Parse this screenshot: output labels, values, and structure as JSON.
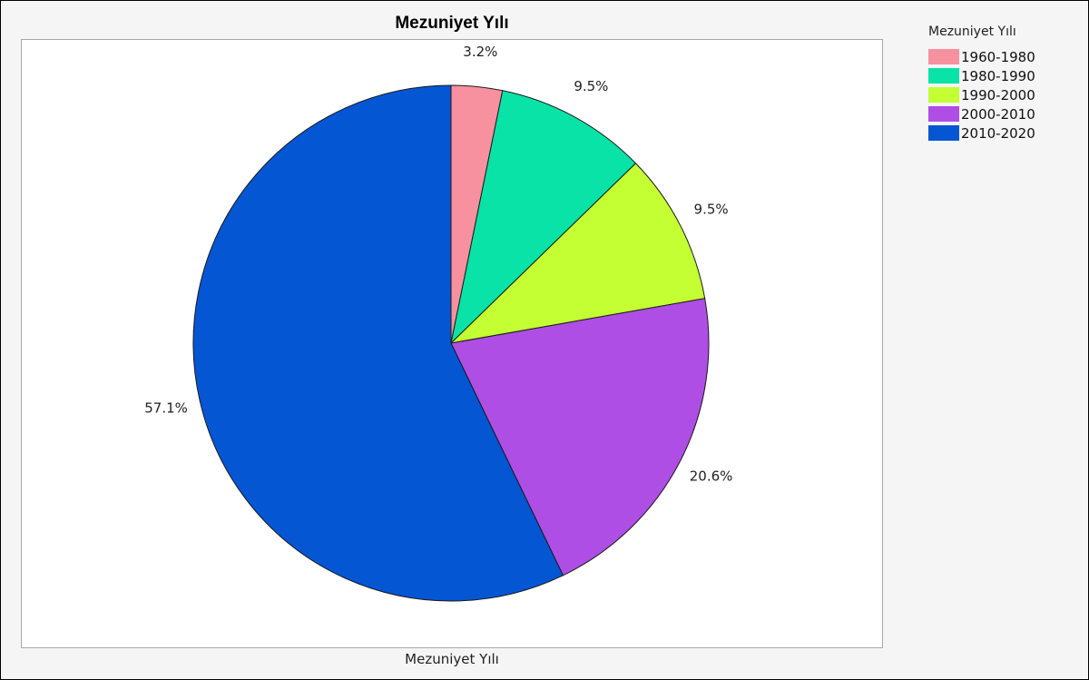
{
  "title": "Mezuniyet Yılı",
  "x_caption": "Mezuniyet Yılı",
  "legend": {
    "title": "Mezuniyet Yılı",
    "items": [
      {
        "label": "1960-1980",
        "color": "#f7919f"
      },
      {
        "label": "1980-1990",
        "color": "#09e3a7"
      },
      {
        "label": "1990-2000",
        "color": "#c3ff33"
      },
      {
        "label": "2000-2010",
        "color": "#ae4ee5"
      },
      {
        "label": "2010-2020",
        "color": "#0456d3"
      }
    ]
  },
  "chart_data": {
    "type": "pie",
    "title": "Mezuniyet Yılı",
    "legend_position": "right",
    "start": "top, clockwise",
    "slices": [
      {
        "label": "1960-1980",
        "value": 3.2,
        "display": "3.2%",
        "color": "#f7919f"
      },
      {
        "label": "1980-1990",
        "value": 9.5,
        "display": "9.5%",
        "color": "#09e3a7"
      },
      {
        "label": "1990-2000",
        "value": 9.5,
        "display": "9.5%",
        "color": "#c3ff33"
      },
      {
        "label": "2000-2010",
        "value": 20.6,
        "display": "20.6%",
        "color": "#ae4ee5"
      },
      {
        "label": "2010-2020",
        "value": 57.1,
        "display": "57.1%",
        "color": "#0456d3"
      }
    ]
  }
}
